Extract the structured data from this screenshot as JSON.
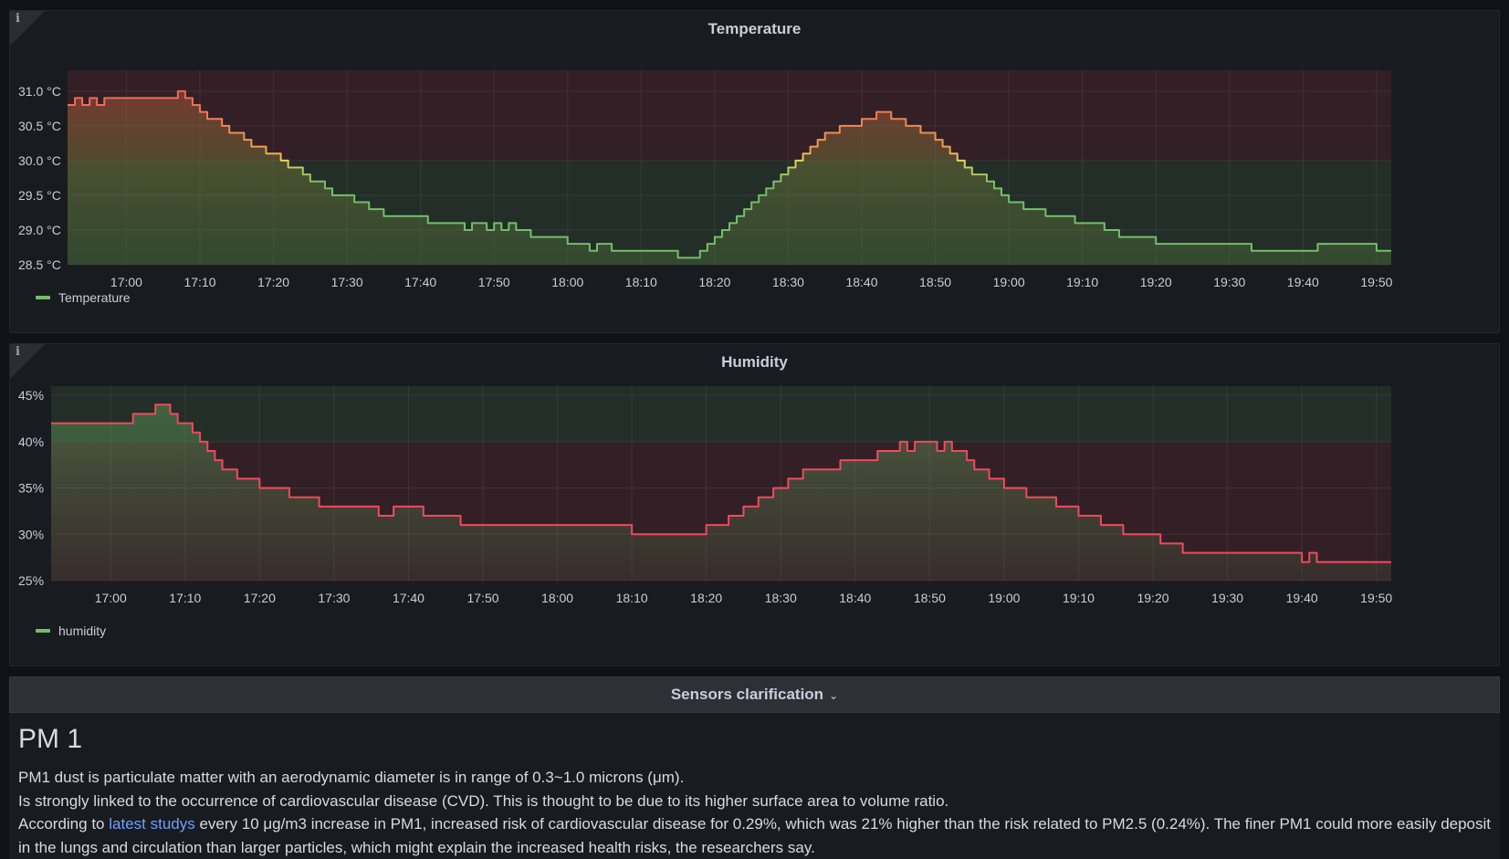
{
  "temperature_panel": {
    "title": "Temperature",
    "info_icon": "info-icon",
    "legend": "Temperature",
    "series_color": "#73bf69",
    "threshold_warm_color": "#f2495c",
    "threshold_ok_color": "#73bf69",
    "y_tick_labels": [
      "31.0 °C",
      "30.5 °C",
      "30.0 °C",
      "29.5 °C",
      "29.0 °C",
      "28.5 °C"
    ],
    "x_tick_labels": [
      "17:00",
      "17:10",
      "17:20",
      "17:30",
      "17:40",
      "17:50",
      "18:00",
      "18:10",
      "18:20",
      "18:30",
      "18:40",
      "18:50",
      "19:00",
      "19:10",
      "19:20",
      "19:30",
      "19:40",
      "19:50"
    ]
  },
  "humidity_panel": {
    "title": "Humidity",
    "info_icon": "info-icon",
    "legend": "humidity",
    "series_color": "#73bf69",
    "y_tick_labels": [
      "45%",
      "40%",
      "35%",
      "30%",
      "25%"
    ],
    "x_tick_labels": [
      "17:00",
      "17:10",
      "17:20",
      "17:30",
      "17:40",
      "17:50",
      "18:00",
      "18:10",
      "18:20",
      "18:30",
      "18:40",
      "18:50",
      "19:00",
      "19:10",
      "19:20",
      "19:30",
      "19:40",
      "19:50"
    ]
  },
  "row": {
    "title": "Sensors clarification",
    "chevron_icon": "chevron-down-icon"
  },
  "text_panel": {
    "heading": "PM 1",
    "line1": "PM1 dust is particulate matter with an aerodynamic diameter is in range of 0.3~1.0 microns (μm).",
    "line2": "Is strongly linked to the occurrence of cardiovascular disease (CVD). This is thought to be due to its higher surface area to volume ratio.",
    "line3_prefix": "According to ",
    "line3_link": "latest studys",
    "line3_suffix": " every 10 μg/m3 increase in PM1, increased risk of cardiovascular disease for 0.29%, which was 21% higher than the risk related to PM2.5 (0.24%). The finer PM1 could more easily deposit in the lungs and circulation than larger particles, which might explain the increased health risks, the researchers say."
  },
  "chart_data": [
    {
      "type": "line",
      "title": "Temperature",
      "unit": "°C",
      "ylim": [
        28.5,
        31.3
      ],
      "xlim": [
        "16:52",
        "19:52"
      ],
      "thresholds": [
        {
          "from": 30.0,
          "color": "#f2495c"
        },
        {
          "below": 30.0,
          "color": "#73bf69"
        }
      ],
      "series": [
        {
          "name": "Temperature",
          "x": [
            "16:52",
            "16:53",
            "16:54",
            "16:55",
            "16:56",
            "16:57",
            "17:07",
            "17:08",
            "17:09",
            "17:10",
            "17:11",
            "17:13",
            "17:14",
            "17:16",
            "17:17",
            "17:19",
            "17:21",
            "17:22",
            "17:24",
            "17:25",
            "17:27",
            "17:28",
            "17:29",
            "17:31",
            "17:33",
            "17:35",
            "17:38",
            "17:41",
            "17:44",
            "17:46",
            "17:47",
            "17:49",
            "17:50",
            "17:51",
            "17:52",
            "17:53",
            "17:55",
            "17:58",
            "18:00",
            "18:02",
            "18:03",
            "18:04",
            "18:05",
            "18:06",
            "18:09",
            "18:12",
            "18:15",
            "18:17",
            "18:18",
            "18:19",
            "18:20",
            "18:21",
            "18:22",
            "18:23",
            "18:24",
            "18:25",
            "18:26",
            "18:27",
            "18:28",
            "18:29",
            "18:30",
            "18:31",
            "18:32",
            "18:33",
            "18:34",
            "18:35",
            "18:37",
            "18:38",
            "18:39",
            "18:40",
            "18:41",
            "18:42",
            "18:44",
            "18:46",
            "18:48",
            "18:50",
            "18:51",
            "18:52",
            "18:53",
            "18:54",
            "18:55",
            "18:57",
            "18:58",
            "18:59",
            "19:00",
            "19:02",
            "19:03",
            "19:05",
            "19:07",
            "19:09",
            "19:11",
            "19:13",
            "19:15",
            "19:17",
            "19:18",
            "19:20",
            "19:23",
            "19:25",
            "19:30",
            "19:33",
            "19:40",
            "19:42",
            "19:48",
            "19:50",
            "19:51",
            "19:52"
          ],
          "values": [
            30.8,
            30.9,
            30.8,
            30.9,
            30.8,
            30.9,
            31.0,
            30.9,
            30.8,
            30.7,
            30.6,
            30.5,
            30.4,
            30.3,
            30.2,
            30.1,
            30.0,
            29.9,
            29.8,
            29.7,
            29.6,
            29.5,
            29.5,
            29.4,
            29.3,
            29.2,
            29.2,
            29.1,
            29.1,
            29.0,
            29.1,
            29.0,
            29.1,
            29.0,
            29.1,
            29.0,
            28.9,
            28.9,
            28.8,
            28.8,
            28.7,
            28.8,
            28.8,
            28.7,
            28.7,
            28.7,
            28.6,
            28.6,
            28.7,
            28.8,
            28.9,
            29.0,
            29.1,
            29.2,
            29.3,
            29.4,
            29.5,
            29.6,
            29.7,
            29.8,
            29.9,
            30.0,
            30.1,
            30.2,
            30.3,
            30.4,
            30.5,
            30.5,
            30.5,
            30.6,
            30.6,
            30.7,
            30.6,
            30.5,
            30.4,
            30.3,
            30.2,
            30.1,
            30.0,
            29.9,
            29.8,
            29.7,
            29.6,
            29.5,
            29.4,
            29.3,
            29.3,
            29.2,
            29.2,
            29.1,
            29.1,
            29.0,
            28.9,
            28.9,
            28.9,
            28.8,
            28.8,
            28.8,
            28.8,
            28.7,
            28.7,
            28.8,
            28.8,
            28.7,
            28.7,
            28.7
          ]
        }
      ]
    },
    {
      "type": "line",
      "title": "Humidity",
      "unit": "%",
      "ylim": [
        25,
        46
      ],
      "xlim": [
        "16:52",
        "19:52"
      ],
      "thresholds": [
        {
          "from": 40,
          "color": "#73bf69"
        },
        {
          "below": 40,
          "color": "#f2495c"
        }
      ],
      "series": [
        {
          "name": "humidity",
          "x": [
            "16:52",
            "16:59",
            "17:03",
            "17:05",
            "17:06",
            "17:07",
            "17:08",
            "17:09",
            "17:11",
            "17:12",
            "17:13",
            "17:14",
            "17:15",
            "17:17",
            "17:20",
            "17:24",
            "17:28",
            "17:32",
            "17:36",
            "17:38",
            "17:42",
            "17:47",
            "17:52",
            "17:59",
            "18:06",
            "18:10",
            "18:18",
            "18:20",
            "18:23",
            "18:25",
            "18:27",
            "18:29",
            "18:31",
            "18:33",
            "18:34",
            "18:35",
            "18:38",
            "18:43",
            "18:46",
            "18:47",
            "18:48",
            "18:50",
            "18:51",
            "18:52",
            "18:53",
            "18:54",
            "18:55",
            "18:56",
            "18:58",
            "19:00",
            "19:03",
            "19:07",
            "19:10",
            "19:13",
            "19:16",
            "19:21",
            "19:24",
            "19:25",
            "19:31",
            "19:34",
            "19:40",
            "19:41",
            "19:42",
            "19:52"
          ],
          "values": [
            42,
            42,
            43,
            43,
            44,
            44,
            43,
            42,
            41,
            40,
            39,
            38,
            37,
            36,
            35,
            34,
            33,
            33,
            32,
            33,
            32,
            31,
            31,
            31,
            31,
            30,
            30,
            31,
            32,
            33,
            34,
            35,
            36,
            37,
            37,
            37,
            38,
            39,
            40,
            39,
            40,
            40,
            39,
            40,
            39,
            39,
            38,
            37,
            36,
            35,
            34,
            33,
            32,
            31,
            30,
            29,
            28,
            28,
            28,
            28,
            27,
            28,
            27,
            27
          ]
        }
      ]
    }
  ]
}
